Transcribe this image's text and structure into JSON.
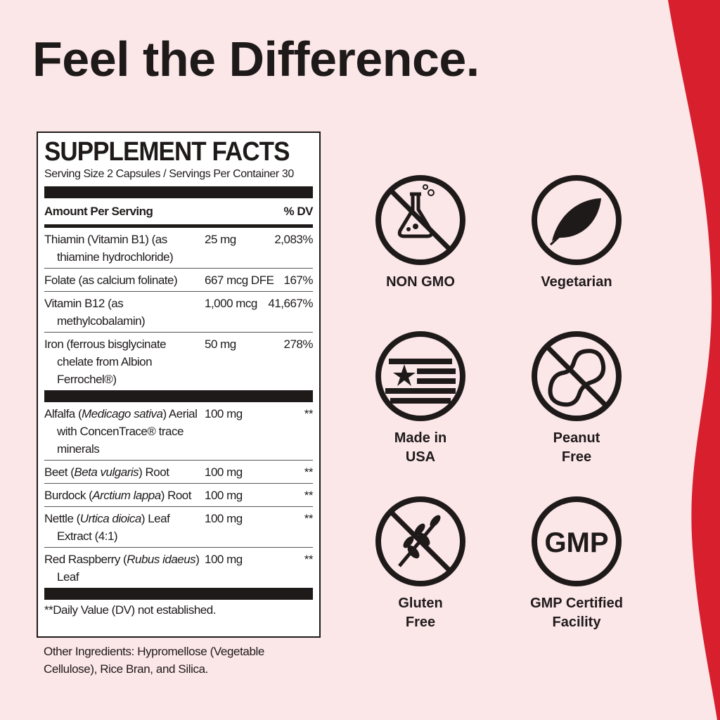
{
  "headline": "Feel the Difference.",
  "colors": {
    "background": "#fbe6e8",
    "accent_red": "#d81f2e",
    "ink": "#1f1a1a"
  },
  "facts": {
    "title": "SUPPLEMENT FACTS",
    "serving": "Serving Size 2 Capsules / Servings Per Container 30",
    "col_amount": "Amount Per Serving",
    "col_dv": "% DV",
    "group1": [
      {
        "name": "Thiamin (Vitamin B1)",
        "sub": "(as thiamine hydrochloride)",
        "amount": "25 mg",
        "dv": "2,083%"
      },
      {
        "name": "Folate (as calcium folinate)",
        "sub": "",
        "amount": "667 mcg DFE",
        "dv": "167%"
      },
      {
        "name": "Vitamin B12",
        "sub": "(as methylcobalamin)",
        "amount": "1,000 mcg",
        "dv": "41,667%"
      },
      {
        "name": "Iron (ferrous bisglycinate",
        "sub": "chelate from Albion Ferrochel®)",
        "amount": "50 mg",
        "dv": "278%"
      }
    ],
    "group2": [
      {
        "pre": "Alfalfa (",
        "latin": "Medicago sativa",
        "post": ") Aerial with ConcenTrace® trace minerals",
        "amount": "100 mg",
        "dv": "**"
      },
      {
        "pre": "Beet (",
        "latin": "Beta vulgaris",
        "post": ") Root",
        "amount": "100 mg",
        "dv": "**"
      },
      {
        "pre": "Burdock (",
        "latin": "Arctium lappa",
        "post": ") Root",
        "amount": "100 mg",
        "dv": "**"
      },
      {
        "pre": "Nettle (",
        "latin": "Urtica dioica",
        "post": ") Leaf Extract (4:1)",
        "amount": "100 mg",
        "dv": "**"
      },
      {
        "pre": "Red Raspberry (",
        "latin": "Rubus idaeus",
        "post": ") Leaf",
        "amount": "100 mg",
        "dv": "**"
      }
    ],
    "footnote": "**Daily Value (DV) not established."
  },
  "other_ingredients": "Other Ingredients: Hypromellose (Vegetable Cellulose), Rice Bran, and Silica.",
  "badges": [
    {
      "label": "NON GMO",
      "icon": "flask-crossed-icon"
    },
    {
      "label": "Vegetarian",
      "icon": "leaf-icon"
    },
    {
      "label": "Made in USA",
      "icon": "us-flag-icon"
    },
    {
      "label": "Peanut Free",
      "icon": "peanut-crossed-icon"
    },
    {
      "label": "Gluten Free",
      "icon": "wheat-crossed-icon"
    },
    {
      "label": "GMP Certified Facility",
      "icon": "gmp-icon",
      "icon_text": "GMP"
    }
  ]
}
